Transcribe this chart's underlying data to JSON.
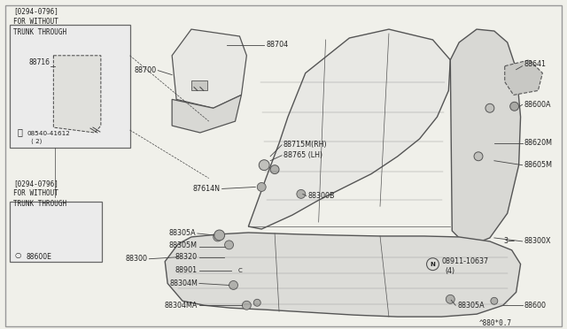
{
  "bg_color": "#f0f0ea",
  "border_color": "#999999",
  "line_color": "#444444",
  "text_color": "#222222",
  "footer": "^880*0.7",
  "box1_label": "[0294-0796]\nFOR WITHOUT\nTRUNK THROUGH",
  "box2_label": "[0294-0796]\nFOR WITHOUT\nTRUNK THROUGH",
  "seat_fill": "#e8e8e4",
  "seat_edge": "#555555",
  "cushion_fill": "#dcdcd8",
  "armrest_fill": "#e0e0dc",
  "panel_fill": "#d8d8d4"
}
